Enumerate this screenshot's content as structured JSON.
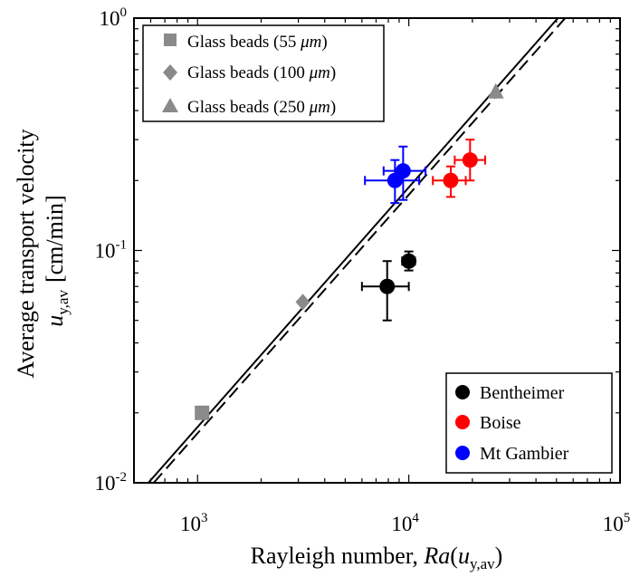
{
  "chart_data": {
    "type": "scatter",
    "scale": "log-log",
    "xlabel": {
      "prefix": "Rayleigh number, ",
      "var": "Ra",
      "open": "(",
      "inner_var": "u",
      "inner_sub": "y,av",
      "close": ")"
    },
    "ylabel": {
      "line1": "Average transport velocity",
      "var": "u",
      "sub": "y,av",
      "unit": "[cm/min]"
    },
    "xlim": [
      500,
      100000
    ],
    "ylim": [
      0.01,
      1
    ],
    "x_ticks": [
      {
        "value": 1000,
        "base": "10",
        "exp": "3"
      },
      {
        "value": 10000,
        "base": "10",
        "exp": "4"
      },
      {
        "value": 100000,
        "base": "10",
        "exp": "5"
      }
    ],
    "y_ticks": [
      {
        "value": 0.01,
        "base": "10",
        "exp": "-2"
      },
      {
        "value": 0.1,
        "base": "10",
        "exp": "-1"
      },
      {
        "value": 1,
        "base": "10",
        "exp": "0"
      }
    ],
    "lines": [
      {
        "name": "fit-solid",
        "style": "solid",
        "points": [
          [
            585,
            0.01
          ],
          [
            50800,
            1
          ]
        ]
      },
      {
        "name": "fit-dashed",
        "style": "dashed",
        "points": [
          [
            620,
            0.01
          ],
          [
            55000,
            1
          ]
        ]
      }
    ],
    "glass_beads": [
      {
        "label_prefix": "Glass beads (",
        "size": "55",
        "unit": "μm",
        "label_suffix": ")",
        "marker": "square",
        "x": 1050,
        "y": 0.02
      },
      {
        "label_prefix": "Glass beads (",
        "size": "100",
        "unit": "μm",
        "label_suffix": ")",
        "marker": "diamond",
        "x": 3150,
        "y": 0.06
      },
      {
        "label_prefix": "Glass beads (",
        "size": "250",
        "unit": "μm",
        "label_suffix": ")",
        "marker": "triangle",
        "x": 25800,
        "y": 0.48
      }
    ],
    "rock_series": [
      {
        "name": "Bentheimer",
        "color": "#000000",
        "points": [
          {
            "x": 7900,
            "y": 0.07,
            "xerr": [
              6000,
              10000
            ],
            "yerr": [
              0.05,
              0.09
            ]
          },
          {
            "x": 10000,
            "y": 0.09,
            "xerr": [
              9300,
              10700
            ],
            "yerr": [
              0.082,
              0.099
            ]
          }
        ]
      },
      {
        "name": "Boise",
        "color": "#ff0000",
        "points": [
          {
            "x": 15800,
            "y": 0.2,
            "xerr": [
              13000,
              18600
            ],
            "yerr": [
              0.17,
              0.23
            ]
          },
          {
            "x": 19500,
            "y": 0.245,
            "xerr": [
              16500,
              23000
            ],
            "yerr": [
              0.2,
              0.3
            ]
          }
        ]
      },
      {
        "name": "Mt Gambier",
        "color": "#0000ff",
        "points": [
          {
            "x": 8600,
            "y": 0.2,
            "xerr": [
              6200,
              11200
            ],
            "yerr": [
              0.16,
              0.245
            ]
          },
          {
            "x": 9400,
            "y": 0.22,
            "xerr": [
              7600,
              12000
            ],
            "yerr": [
              0.165,
              0.28
            ]
          }
        ]
      }
    ],
    "colors": {
      "glass": "#8a8a8a",
      "axis": "#000000"
    }
  }
}
